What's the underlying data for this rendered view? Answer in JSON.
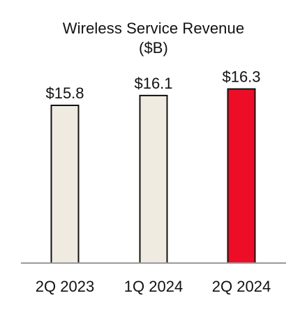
{
  "chart_data": {
    "type": "bar",
    "title": "Wireless Service Revenue",
    "subtitle": "($B)",
    "categories": [
      "2Q 2023",
      "1Q 2024",
      "2Q 2024"
    ],
    "values": [
      15.8,
      16.1,
      16.3
    ],
    "data_labels": [
      "$15.8",
      "$16.1",
      "$16.3"
    ],
    "xlabel": "",
    "ylabel": "",
    "grid": false,
    "legend": "none",
    "bar_colors": [
      "#f0ebe1",
      "#f0ebe1",
      "#ee0d26"
    ],
    "bar_outline_color": "#111111",
    "baseline_color": "#9a9a9a"
  }
}
